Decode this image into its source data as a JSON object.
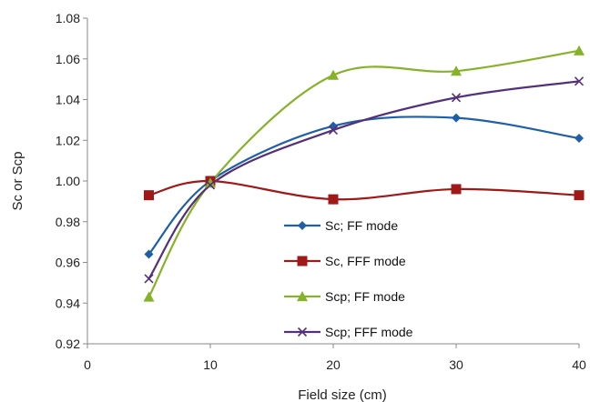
{
  "chart_data": {
    "type": "line",
    "xlabel": "Field size (cm)",
    "ylabel": "Sc  or  Scp",
    "xlim": [
      0,
      40
    ],
    "ylim": [
      0.92,
      1.08
    ],
    "xticks": [
      0,
      10,
      20,
      30,
      40
    ],
    "xtick_labels": [
      "0",
      "10",
      "20",
      "30",
      "40"
    ],
    "yticks": [
      0.92,
      0.94,
      0.96,
      0.98,
      1.0,
      1.02,
      1.04,
      1.06,
      1.08
    ],
    "ytick_labels": [
      "0.92",
      "0.94",
      "0.96",
      "0.98",
      "1.00",
      "1.02",
      "1.04",
      "1.06",
      "1.08"
    ],
    "grid": false,
    "legend_position": "center-bottom",
    "x": [
      5,
      10,
      20,
      30,
      40
    ],
    "series": [
      {
        "name": "Sc; FF mode",
        "values": [
          0.964,
          1.0,
          1.027,
          1.031,
          1.021
        ],
        "color": "#1f5fa8",
        "marker": "diamond"
      },
      {
        "name": "Sc, FFF mode",
        "values": [
          0.993,
          1.0,
          0.991,
          0.996,
          0.993
        ],
        "color": "#a01818",
        "marker": "square"
      },
      {
        "name": "Scp; FF mode",
        "values": [
          0.943,
          0.999,
          1.052,
          1.054,
          1.064
        ],
        "color": "#86b22a",
        "marker": "triangle"
      },
      {
        "name": "Scp; FFF mode",
        "values": [
          0.952,
          0.998,
          1.025,
          1.041,
          1.049
        ],
        "color": "#55307a",
        "marker": "x"
      }
    ]
  }
}
